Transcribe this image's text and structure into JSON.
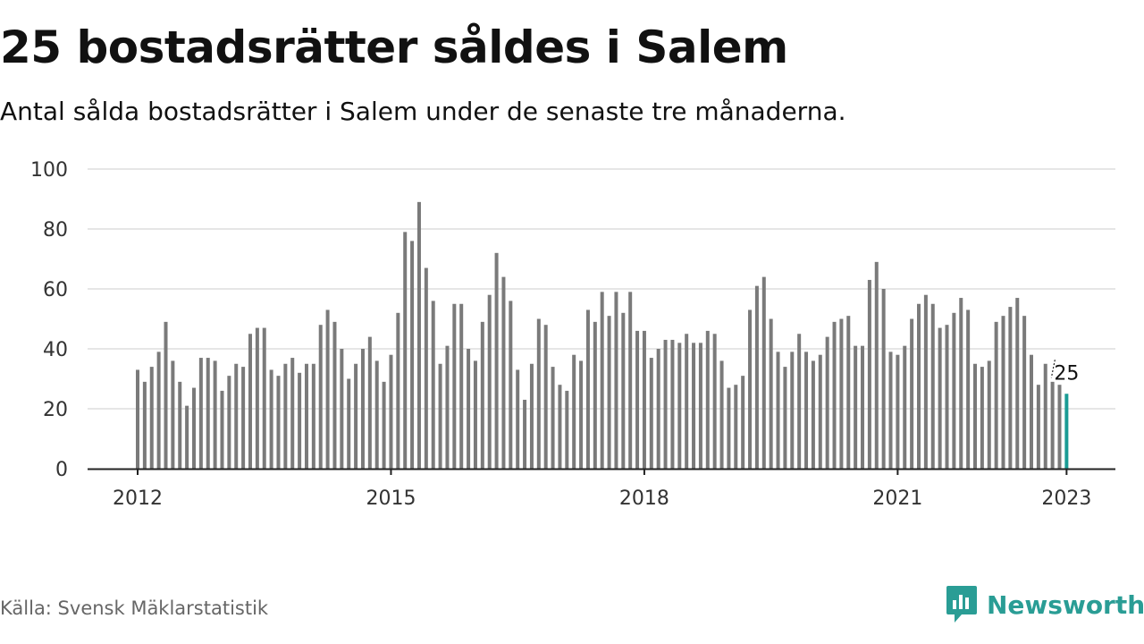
{
  "title": "25 bostadsrätter såldes i Salem",
  "subtitle": "Antal sålda bostadsrätter i Salem under de senaste tre månaderna.",
  "source": "Källa: Svensk Mäklarstatistik",
  "brand": {
    "name": "Newsworthy",
    "icon": "newsworthy-logo-icon",
    "color": "#2a9d95"
  },
  "colors": {
    "bar": "#7a7a7a",
    "highlight": "#1a9c95",
    "grid": "#dddddd",
    "axis": "#222222"
  },
  "chart_data": {
    "type": "bar",
    "x_start": "2012-01",
    "interval": "month",
    "x_ticks": [
      "2012",
      "2015",
      "2018",
      "2021",
      "2023"
    ],
    "y_ticks": [
      "0",
      "20",
      "40",
      "60",
      "80",
      "100"
    ],
    "ylim": [
      0,
      100
    ],
    "grid": true,
    "values": [
      33,
      29,
      34,
      39,
      49,
      36,
      29,
      21,
      27,
      37,
      37,
      36,
      26,
      31,
      35,
      34,
      45,
      47,
      47,
      33,
      31,
      35,
      37,
      32,
      35,
      35,
      48,
      53,
      49,
      40,
      30,
      35,
      40,
      44,
      36,
      29,
      38,
      52,
      79,
      76,
      89,
      67,
      56,
      35,
      41,
      55,
      55,
      40,
      36,
      49,
      58,
      72,
      64,
      56,
      33,
      23,
      35,
      50,
      48,
      34,
      28,
      26,
      38,
      36,
      53,
      49,
      59,
      51,
      59,
      52,
      59,
      46,
      46,
      37,
      40,
      43,
      43,
      42,
      45,
      42,
      42,
      46,
      45,
      36,
      27,
      28,
      31,
      53,
      61,
      64,
      50,
      39,
      34,
      39,
      45,
      39,
      36,
      38,
      44,
      49,
      50,
      51,
      41,
      41,
      63,
      69,
      60,
      39,
      38,
      41,
      50,
      55,
      58,
      55,
      47,
      48,
      52,
      57,
      53,
      35,
      34,
      36,
      49,
      51,
      54,
      57,
      51,
      38,
      28,
      35,
      29,
      28,
      25
    ],
    "highlight_last": true,
    "data_label": "25"
  }
}
